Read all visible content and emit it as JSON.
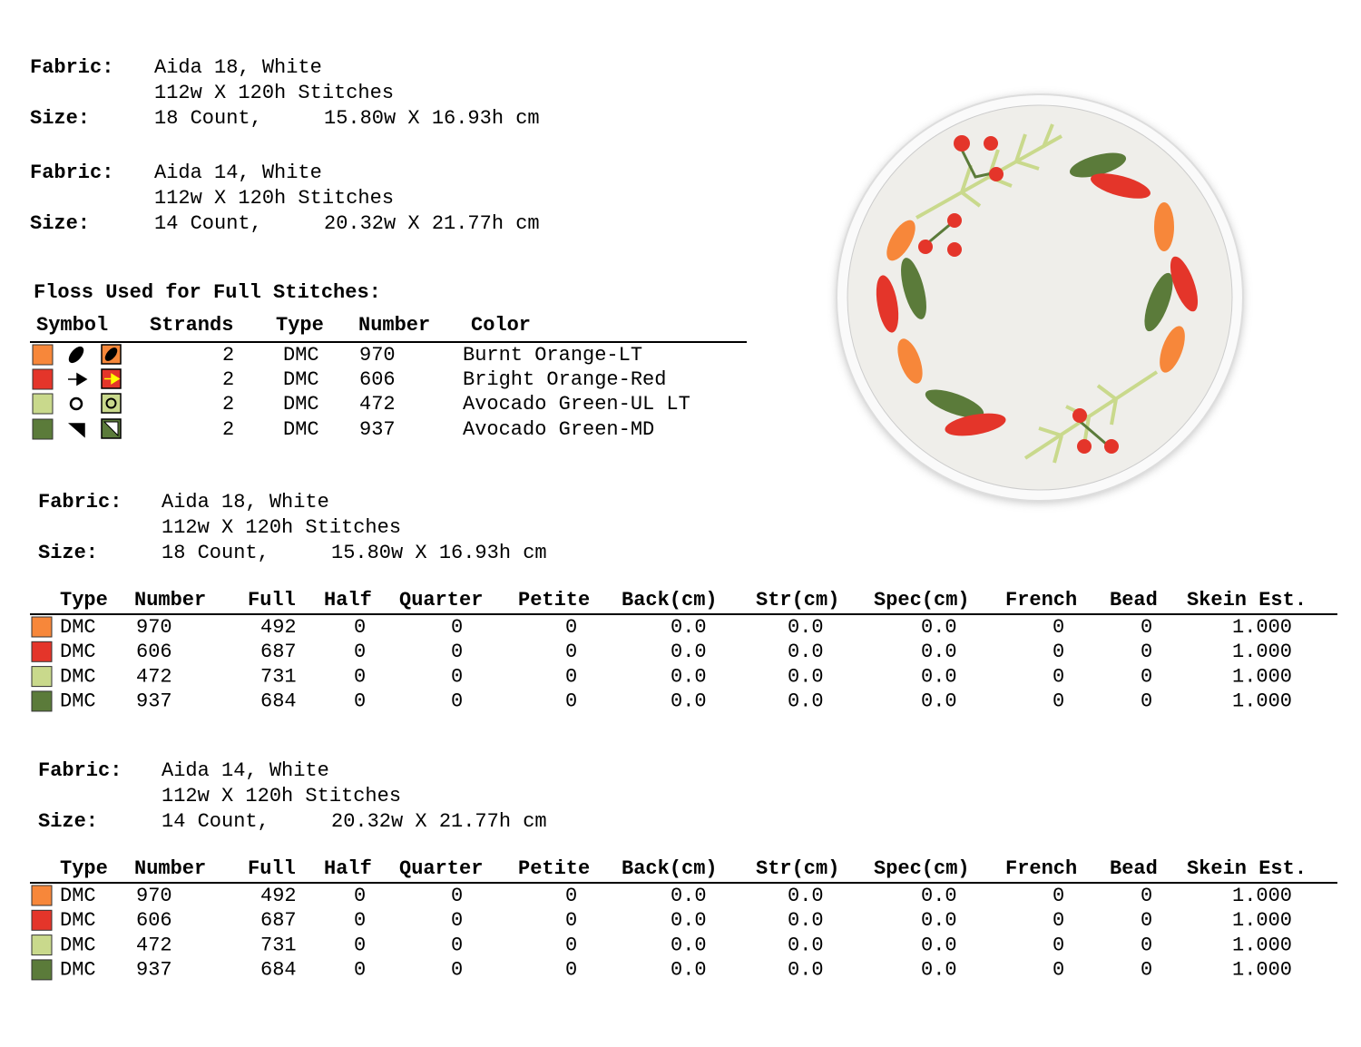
{
  "specs_top": [
    {
      "fabric_label": "Fabric:",
      "fabric": "Aida 18, White",
      "stitches": "112w X 120h Stitches",
      "size_label": "Size:",
      "count": "18 Count,",
      "dimensions": "15.80w X 16.93h cm"
    },
    {
      "fabric_label": "Fabric:",
      "fabric": "Aida 14, White",
      "stitches": "112w X 120h Stitches",
      "size_label": "Size:",
      "count": "14 Count,",
      "dimensions": "20.32w X 21.77h cm"
    }
  ],
  "floss": {
    "title": "Floss Used for Full Stitches:",
    "headers": [
      "Symbol",
      "Strands",
      "Type",
      "Number",
      "Color"
    ],
    "rows": [
      {
        "color": "#f7873a",
        "strands": "2",
        "type": "DMC",
        "number": "970",
        "name": "Burnt Orange-LT"
      },
      {
        "color": "#e4352a",
        "strands": "2",
        "type": "DMC",
        "number": "606",
        "name": "Bright Orange-Red"
      },
      {
        "color": "#c9d98c",
        "strands": "2",
        "type": "DMC",
        "number": "472",
        "name": "Avocado Green-UL LT"
      },
      {
        "color": "#5b7b3a",
        "strands": "2",
        "type": "DMC",
        "number": "937",
        "name": "Avocado Green-MD"
      }
    ]
  },
  "estimates": [
    {
      "fabric_label": "Fabric:",
      "fabric": "Aida 18, White",
      "stitches": "112w X 120h Stitches",
      "size_label": "Size:",
      "count": "18 Count,",
      "dimensions": "15.80w X 16.93h cm",
      "headers": [
        "Type",
        "Number",
        "Full",
        "Half",
        "Quarter",
        "Petite",
        "Back(cm)",
        "Str(cm)",
        "Spec(cm)",
        "French",
        "Bead",
        "Skein Est."
      ],
      "rows": [
        {
          "color": "#f7873a",
          "cells": [
            "DMC",
            "970",
            "492",
            "0",
            "0",
            "0",
            "0.0",
            "0.0",
            "0.0",
            "0",
            "0",
            "1.000"
          ]
        },
        {
          "color": "#e4352a",
          "cells": [
            "DMC",
            "606",
            "687",
            "0",
            "0",
            "0",
            "0.0",
            "0.0",
            "0.0",
            "0",
            "0",
            "1.000"
          ]
        },
        {
          "color": "#c9d98c",
          "cells": [
            "DMC",
            "472",
            "731",
            "0",
            "0",
            "0",
            "0.0",
            "0.0",
            "0.0",
            "0",
            "0",
            "1.000"
          ]
        },
        {
          "color": "#5b7b3a",
          "cells": [
            "DMC",
            "937",
            "684",
            "0",
            "0",
            "0",
            "0.0",
            "0.0",
            "0.0",
            "0",
            "0",
            "1.000"
          ]
        }
      ]
    },
    {
      "fabric_label": "Fabric:",
      "fabric": "Aida 14, White",
      "stitches": "112w X 120h Stitches",
      "size_label": "Size:",
      "count": "14 Count,",
      "dimensions": "20.32w X 21.77h cm",
      "headers": [
        "Type",
        "Number",
        "Full",
        "Half",
        "Quarter",
        "Petite",
        "Back(cm)",
        "Str(cm)",
        "Spec(cm)",
        "French",
        "Bead",
        "Skein Est."
      ],
      "rows": [
        {
          "color": "#f7873a",
          "cells": [
            "DMC",
            "970",
            "492",
            "0",
            "0",
            "0",
            "0.0",
            "0.0",
            "0.0",
            "0",
            "0",
            "1.000"
          ]
        },
        {
          "color": "#e4352a",
          "cells": [
            "DMC",
            "606",
            "687",
            "0",
            "0",
            "0",
            "0.0",
            "0.0",
            "0.0",
            "0",
            "0",
            "1.000"
          ]
        },
        {
          "color": "#c9d98c",
          "cells": [
            "DMC",
            "472",
            "731",
            "0",
            "0",
            "0",
            "0.0",
            "0.0",
            "0.0",
            "0",
            "0",
            "1.000"
          ]
        },
        {
          "color": "#5b7b3a",
          "cells": [
            "DMC",
            "937",
            "684",
            "0",
            "0",
            "0",
            "0.0",
            "0.0",
            "0.0",
            "0",
            "0",
            "1.000"
          ]
        }
      ]
    }
  ]
}
